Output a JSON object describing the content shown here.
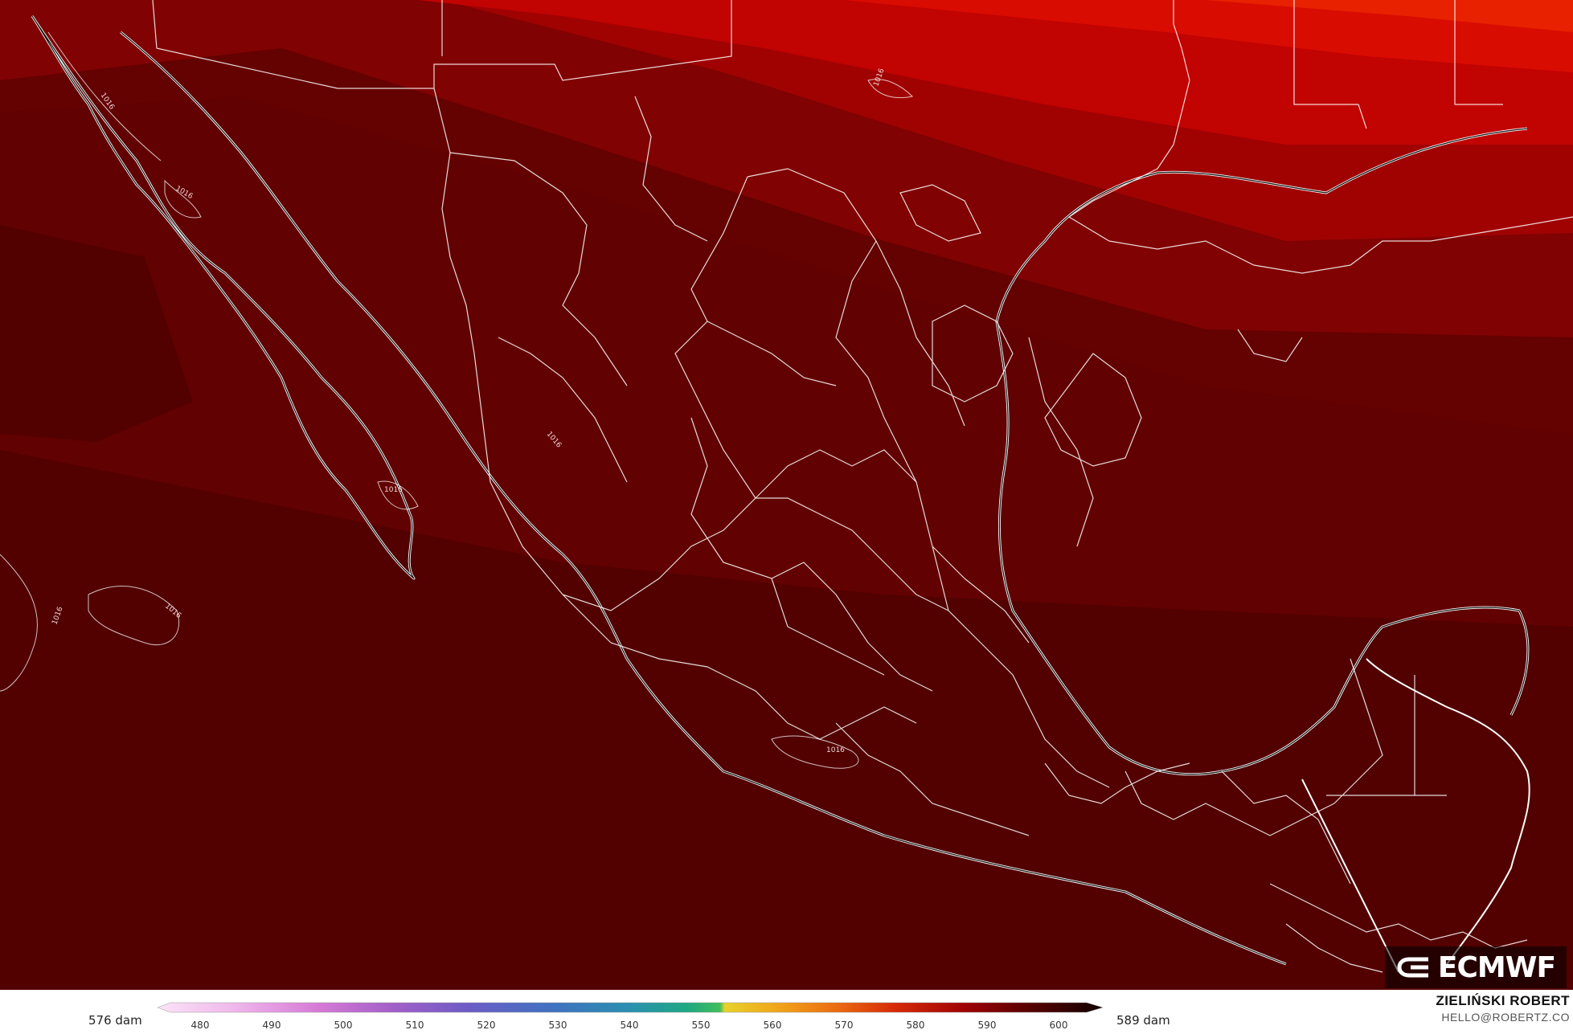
{
  "map": {
    "field_description_colors": {
      "ocean_dark": "#4e0000",
      "mid": "#6e0202",
      "warm": "#8a0303",
      "red": "#b00202",
      "bright": "#d40a02",
      "hot": "#e81e00"
    },
    "border_color": "#ffffff",
    "contour_labels": [
      "1016",
      "1016",
      "1016",
      "1016",
      "1016",
      "1016",
      "1016",
      "1016"
    ]
  },
  "logo": {
    "text": "ECMWF",
    "icon": "ecmwf-logo-icon"
  },
  "legend": {
    "min_label": "576 dam",
    "max_label": "589 dam",
    "ticks": [
      "480",
      "490",
      "500",
      "510",
      "520",
      "530",
      "540",
      "550",
      "560",
      "570",
      "580",
      "590",
      "600"
    ]
  },
  "credit": {
    "name": "ZIELIŃSKI ROBERT",
    "email": "HELLO@ROBERTZ.CO"
  }
}
